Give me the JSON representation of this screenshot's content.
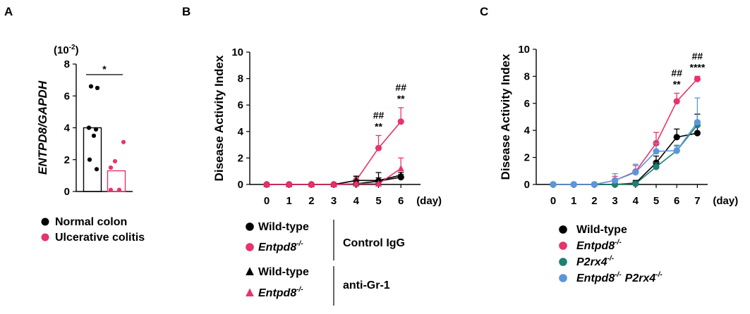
{
  "chart_data": [
    {
      "panel": "A",
      "type": "bar",
      "ylabel": "ENTPD8/GAPDH",
      "yscale_label": "(10",
      "yscale_exp": "-2",
      "yscale_close": ")",
      "ylim": [
        0,
        8
      ],
      "yticks": [
        "0",
        "2",
        "4",
        "6",
        "8"
      ],
      "significance": "*",
      "series": [
        {
          "name": "Normal colon",
          "color": "#000000",
          "mean": 4.0,
          "points": [
            6.6,
            6.5,
            4.0,
            3.9,
            3.5,
            2.0,
            1.4
          ]
        },
        {
          "name": "Ulcerative colitis",
          "color": "#e8336b",
          "mean": 1.3,
          "points": [
            3.1,
            1.9,
            1.5,
            0.1,
            0.1
          ]
        }
      ],
      "legend": [
        {
          "label": "Normal colon",
          "color": "#000000"
        },
        {
          "label": "Ulcerative colitis",
          "color": "#e8336b"
        }
      ]
    },
    {
      "panel": "B",
      "type": "line",
      "ylabel": "Disease Activity Index",
      "x": [
        0,
        1,
        2,
        3,
        4,
        5,
        6
      ],
      "xticks": [
        "0",
        "1",
        "2",
        "3",
        "4",
        "5",
        "6"
      ],
      "xunit": "(day)",
      "ylim": [
        0,
        10
      ],
      "yticks": [
        "0",
        "2",
        "4",
        "6",
        "8",
        "10"
      ],
      "series": [
        {
          "name": "Wild-type",
          "group": "Control IgG",
          "color": "#000000",
          "marker": "circle",
          "values": [
            0,
            0,
            0,
            0,
            0.05,
            0.25,
            0.55
          ],
          "err": [
            0,
            0,
            0,
            0,
            0.15,
            0.25,
            0.2
          ]
        },
        {
          "name": "Entpd8",
          "group": "Control IgG",
          "color": "#e8336b",
          "marker": "circle",
          "values": [
            0,
            0,
            0,
            0,
            0.3,
            2.75,
            4.75
          ],
          "err": [
            0,
            0,
            0,
            0,
            0.35,
            0.95,
            1.05
          ]
        },
        {
          "name": "Wild-type",
          "group": "anti-Gr-1",
          "color": "#000000",
          "marker": "triangle",
          "values": [
            0,
            0,
            0,
            0,
            0.3,
            0.3,
            0.7
          ],
          "err": [
            0,
            0,
            0,
            0,
            0.3,
            0.6,
            0.2
          ]
        },
        {
          "name": "Entpd8",
          "group": "anti-Gr-1",
          "color": "#e8336b",
          "marker": "triangle",
          "values": [
            0,
            0,
            0,
            0,
            0.05,
            0.05,
            1.2
          ],
          "err": [
            0,
            0,
            0,
            0,
            0.1,
            0.1,
            0.8
          ]
        }
      ],
      "annotations": [
        {
          "x": 5,
          "hash": "##",
          "star": "**"
        },
        {
          "x": 6,
          "hash": "##",
          "star": "**"
        }
      ],
      "legend": {
        "groups": [
          {
            "label": "Control IgG",
            "items": [
              {
                "label": "Wild-type",
                "marker": "circle",
                "color": "#000000",
                "italic": false,
                "sup": ""
              },
              {
                "label": "Entpd8",
                "marker": "circle",
                "color": "#e8336b",
                "italic": true,
                "sup": "-/-"
              }
            ]
          },
          {
            "label": "anti-Gr-1",
            "items": [
              {
                "label": "Wild-type",
                "marker": "triangle",
                "color": "#000000",
                "italic": false,
                "sup": ""
              },
              {
                "label": "Entpd8",
                "marker": "triangle",
                "color": "#e8336b",
                "italic": true,
                "sup": "-/-"
              }
            ]
          }
        ]
      }
    },
    {
      "panel": "C",
      "type": "line",
      "ylabel": "Disease Activity Index",
      "x": [
        0,
        1,
        2,
        3,
        4,
        5,
        6,
        7
      ],
      "xticks": [
        "0",
        "1",
        "2",
        "3",
        "4",
        "5",
        "6",
        "7"
      ],
      "xunit": "(day)",
      "ylim": [
        0,
        10
      ],
      "yticks": [
        "0",
        "2",
        "4",
        "6",
        "8",
        "10"
      ],
      "series": [
        {
          "name": "Wild-type",
          "color": "#000000",
          "values": [
            0,
            0,
            0,
            0,
            0.1,
            1.6,
            3.5,
            3.8
          ],
          "err": [
            0,
            0,
            0,
            0.2,
            0.2,
            0.5,
            0.6,
            1.4
          ]
        },
        {
          "name": "Entpd8",
          "color": "#e8336b",
          "values": [
            0,
            0,
            0,
            0.3,
            0.95,
            3.05,
            6.15,
            7.8
          ],
          "err": [
            0,
            0,
            0,
            0.3,
            0.45,
            0.8,
            0.6,
            0.2
          ]
        },
        {
          "name": "P2rx4",
          "color": "#1f7f72",
          "values": [
            0,
            0,
            0,
            0,
            0.05,
            1.3,
            2.5,
            4.4
          ],
          "err": [
            0,
            0,
            0,
            0.05,
            0.05,
            0.3,
            0.4,
            0.3
          ]
        },
        {
          "name": "Entpd8 P2rx4",
          "color": "#5b96d9",
          "values": [
            0,
            0,
            0,
            0.3,
            0.9,
            2.45,
            2.5,
            4.6
          ],
          "err": [
            0,
            0,
            0,
            0.5,
            0.6,
            0.6,
            0.3,
            1.8
          ]
        }
      ],
      "annotations": [
        {
          "x": 6,
          "hash": "##",
          "star": "**"
        },
        {
          "x": 7,
          "hash": "##",
          "star": "****"
        }
      ],
      "legend": [
        {
          "parts": [
            {
              "t": "Wild-type",
              "italic": false,
              "sup": ""
            }
          ],
          "color": "#000000"
        },
        {
          "parts": [
            {
              "t": "Entpd8",
              "italic": true,
              "sup": "-/-"
            }
          ],
          "color": "#e8336b"
        },
        {
          "parts": [
            {
              "t": "P2rx4",
              "italic": true,
              "sup": "-/-"
            }
          ],
          "color": "#1f7f72"
        },
        {
          "parts": [
            {
              "t": "Entpd8",
              "italic": true,
              "sup": "-/-"
            },
            {
              "t": "P2rx4",
              "italic": true,
              "sup": "-/-"
            }
          ],
          "color": "#5b96d9"
        }
      ]
    }
  ]
}
